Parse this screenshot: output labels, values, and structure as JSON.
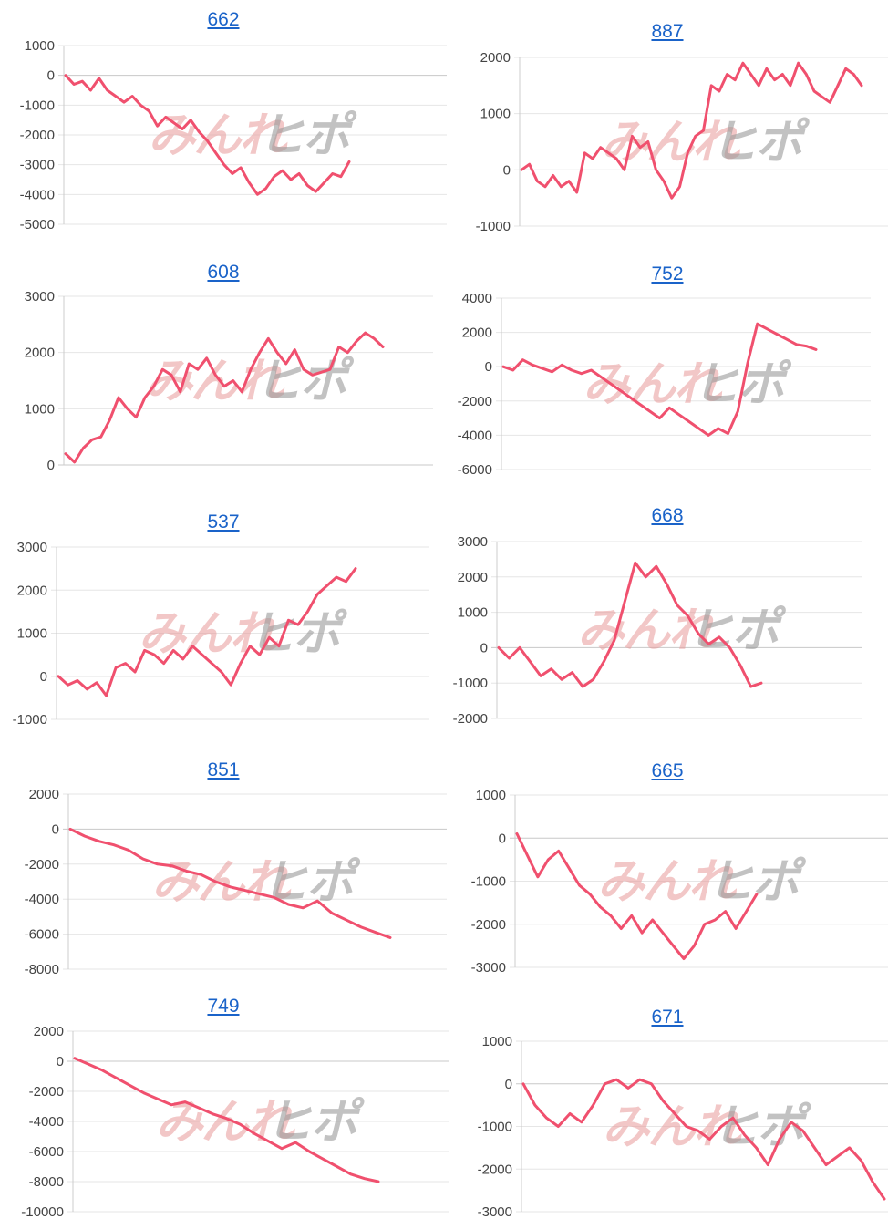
{
  "watermark": {
    "text_a": "みんれ",
    "text_b": "ヒポ"
  },
  "colors": {
    "line": "#f0506e",
    "title": "#1a63c9",
    "grid": "#e6e6e6",
    "axis": "#cccccc"
  },
  "chart_data": [
    {
      "type": "line",
      "title": "662",
      "yticks": [
        "1000",
        "0",
        "-1000",
        "-2000",
        "-3000",
        "-4000",
        "-5000"
      ],
      "ylim": [
        -5000,
        1000
      ],
      "series": [
        {
          "values": [
            0,
            -300,
            -200,
            -500,
            -100,
            -500,
            -700,
            -900,
            -700,
            -1000,
            -1200,
            -1700,
            -1400,
            -1600,
            -1800,
            -1500,
            -1900,
            -2200,
            -2600,
            -3000,
            -3300,
            -3100,
            -3600,
            -4000,
            -3800,
            -3400,
            -3200,
            -3500,
            -3300,
            -3700,
            -3900,
            -3600,
            -3300,
            -3400,
            -2900
          ]
        }
      ]
    },
    {
      "type": "line",
      "title": "887",
      "yticks": [
        "2000",
        "1000",
        "0",
        "-1000"
      ],
      "ylim": [
        -1000,
        2000
      ],
      "series": [
        {
          "values": [
            0,
            100,
            -200,
            -300,
            -100,
            -300,
            -200,
            -400,
            300,
            200,
            400,
            300,
            200,
            0,
            600,
            400,
            500,
            0,
            -200,
            -500,
            -300,
            300,
            600,
            700,
            1500,
            1400,
            1700,
            1600,
            1900,
            1700,
            1500,
            1800,
            1600,
            1700,
            1500,
            1900,
            1700,
            1400,
            1300,
            1200,
            1500,
            1800,
            1700,
            1500
          ]
        }
      ]
    },
    {
      "type": "line",
      "title": "608",
      "yticks": [
        "3000",
        "2000",
        "1000",
        "0"
      ],
      "ylim": [
        0,
        3000
      ],
      "series": [
        {
          "values": [
            200,
            50,
            300,
            450,
            500,
            800,
            1200,
            1000,
            850,
            1200,
            1400,
            1700,
            1600,
            1300,
            1800,
            1700,
            1900,
            1600,
            1400,
            1500,
            1300,
            1700,
            2000,
            2250,
            2000,
            1800,
            2050,
            1700,
            1600,
            1650,
            1700,
            2100,
            2000,
            2200,
            2350,
            2250,
            2100
          ]
        }
      ]
    },
    {
      "type": "line",
      "title": "752",
      "yticks": [
        "4000",
        "2000",
        "0",
        "-2000",
        "-4000",
        "-6000"
      ],
      "ylim": [
        -6000,
        4000
      ],
      "series": [
        {
          "values": [
            0,
            -200,
            400,
            100,
            -100,
            -300,
            100,
            -200,
            -400,
            -200,
            -600,
            -1000,
            -1400,
            -1800,
            -2200,
            -2600,
            -3000,
            -2400,
            -2800,
            -3200,
            -3600,
            -4000,
            -3600,
            -3900,
            -2600,
            200,
            2500,
            2200,
            1900,
            1600,
            1300,
            1200,
            1000
          ]
        }
      ]
    },
    {
      "type": "line",
      "title": "537",
      "yticks": [
        "3000",
        "2000",
        "1000",
        "0",
        "-1000"
      ],
      "ylim": [
        -1000,
        3000
      ],
      "series": [
        {
          "values": [
            0,
            -200,
            -100,
            -300,
            -150,
            -450,
            200,
            300,
            100,
            600,
            500,
            300,
            600,
            400,
            700,
            500,
            300,
            100,
            -200,
            300,
            700,
            500,
            900,
            700,
            1300,
            1200,
            1500,
            1900,
            2100,
            2300,
            2200,
            2500
          ]
        }
      ]
    },
    {
      "type": "line",
      "title": "668",
      "yticks": [
        "3000",
        "2000",
        "1000",
        "0",
        "-1000",
        "-2000"
      ],
      "ylim": [
        -2000,
        3000
      ],
      "series": [
        {
          "values": [
            0,
            -300,
            0,
            -400,
            -800,
            -600,
            -900,
            -700,
            -1100,
            -900,
            -400,
            200,
            1300,
            2400,
            2000,
            2300,
            1800,
            1200,
            900,
            400,
            100,
            300,
            0,
            -500,
            -1100,
            -1000
          ]
        }
      ]
    },
    {
      "type": "line",
      "title": "851",
      "yticks": [
        "2000",
        "0",
        "-2000",
        "-4000",
        "-6000",
        "-8000"
      ],
      "ylim": [
        -8000,
        2000
      ],
      "series": [
        {
          "values": [
            0,
            -400,
            -700,
            -900,
            -1200,
            -1700,
            -2000,
            -2100,
            -2400,
            -2600,
            -3000,
            -3300,
            -3500,
            -3700,
            -3900,
            -4300,
            -4500,
            -4100,
            -4800,
            -5200,
            -5600,
            -5900,
            -6200
          ]
        }
      ]
    },
    {
      "type": "line",
      "title": "665",
      "yticks": [
        "1000",
        "0",
        "-1000",
        "-2000",
        "-3000"
      ],
      "ylim": [
        -3000,
        1000
      ],
      "series": [
        {
          "values": [
            100,
            -400,
            -900,
            -500,
            -300,
            -700,
            -1100,
            -1300,
            -1600,
            -1800,
            -2100,
            -1800,
            -2200,
            -1900,
            -2200,
            -2500,
            -2800,
            -2500,
            -2000,
            -1900,
            -1700,
            -2100,
            -1700,
            -1300
          ]
        }
      ]
    },
    {
      "type": "line",
      "title": "749",
      "yticks": [
        "2000",
        "0",
        "-2000",
        "-4000",
        "-6000",
        "-8000",
        "-10000"
      ],
      "ylim": [
        -10000,
        2000
      ],
      "series": [
        {
          "values": [
            200,
            -200,
            -600,
            -1100,
            -1600,
            -2100,
            -2500,
            -2900,
            -2700,
            -3100,
            -3500,
            -3800,
            -4200,
            -4800,
            -5300,
            -5800,
            -5400,
            -6000,
            -6500,
            -7000,
            -7500,
            -7800,
            -8000
          ]
        }
      ]
    },
    {
      "type": "line",
      "title": "671",
      "yticks": [
        "1000",
        "0",
        "-1000",
        "-2000",
        "-3000"
      ],
      "ylim": [
        -3000,
        1000
      ],
      "series": [
        {
          "values": [
            0,
            -500,
            -800,
            -1000,
            -700,
            -900,
            -500,
            0,
            100,
            -100,
            100,
            0,
            -400,
            -700,
            -1000,
            -1100,
            -1300,
            -1000,
            -800,
            -1200,
            -1500,
            -1900,
            -1300,
            -900,
            -1100,
            -1500,
            -1900,
            -1700,
            -1500,
            -1800,
            -2300,
            -2700
          ]
        }
      ]
    }
  ]
}
